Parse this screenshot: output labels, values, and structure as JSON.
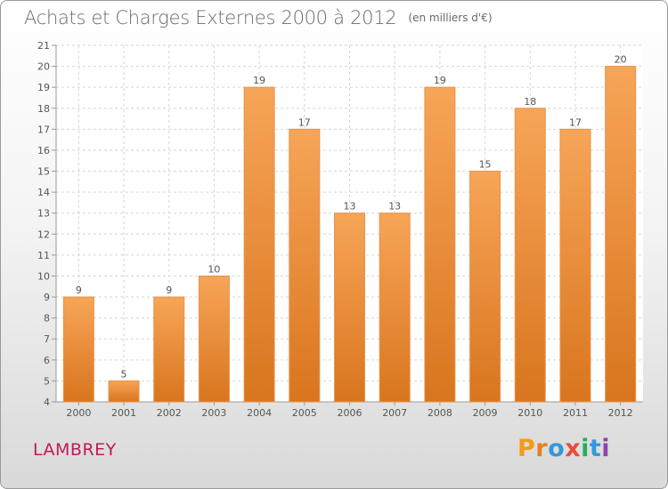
{
  "chart_data": {
    "type": "bar",
    "title": "Achats et Charges Externes 2000 à 2012",
    "subtitle": "(en milliers d'€)",
    "categories": [
      "2000",
      "2001",
      "2002",
      "2003",
      "2004",
      "2005",
      "2006",
      "2007",
      "2008",
      "2009",
      "2010",
      "2011",
      "2012"
    ],
    "values": [
      9,
      5,
      9,
      10,
      19,
      17,
      13,
      13,
      19,
      15,
      18,
      17,
      20
    ],
    "ylim": [
      4,
      21
    ],
    "yticks": [
      4,
      5,
      6,
      7,
      8,
      9,
      10,
      11,
      12,
      13,
      14,
      15,
      16,
      17,
      18,
      19,
      20,
      21
    ],
    "grid": true,
    "bar_color_top": "#f7a558",
    "bar_color_bottom": "#d9751e"
  },
  "place": "LAMBREY",
  "logo": {
    "letters": [
      "P",
      "r",
      "o",
      "x",
      "i",
      "t",
      "i"
    ],
    "colors": [
      "#f39c12",
      "#e67e22",
      "#3498db",
      "#e74c3c",
      "#27ae60",
      "#3498db",
      "#8e44ad"
    ]
  }
}
